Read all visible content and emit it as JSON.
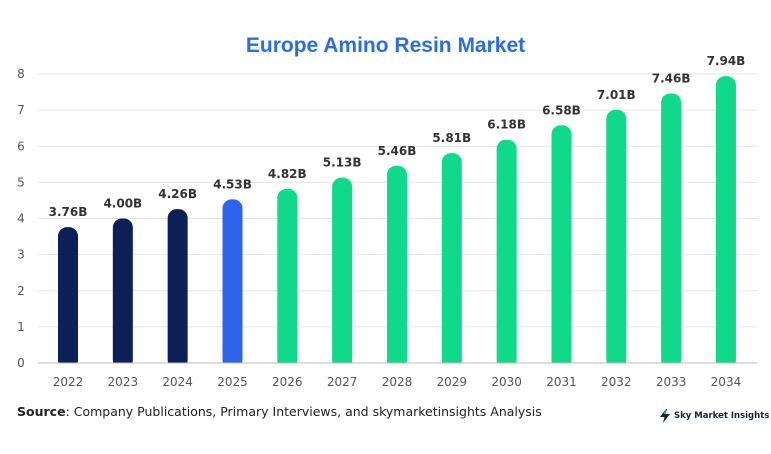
{
  "colors": {
    "title": "#2d6de0",
    "historical": "#0d1f57",
    "current": "#2e63eb",
    "forecast": "#10d98c",
    "axis_text": "#555555",
    "label_text": "#333333",
    "gridline": "#e6e6e6",
    "axis_line": "#bbbbbb"
  },
  "chart_data": {
    "type": "bar",
    "title": "Europe Amino Resin Market",
    "xlabel": "",
    "ylabel": "",
    "ylim": [
      0,
      8
    ],
    "yticks": [
      0,
      1,
      2,
      3,
      4,
      5,
      6,
      7,
      8
    ],
    "grid": true,
    "categories": [
      "2022",
      "2023",
      "2024",
      "2025",
      "2026",
      "2027",
      "2028",
      "2029",
      "2030",
      "2031",
      "2032",
      "2033",
      "2034"
    ],
    "values": [
      3.76,
      4.0,
      4.26,
      4.53,
      4.82,
      5.13,
      5.46,
      5.81,
      6.18,
      6.58,
      7.01,
      7.46,
      7.94
    ],
    "data_labels": [
      "3.76B",
      "4.00B",
      "4.26B",
      "4.53B",
      "4.82B",
      "5.13B",
      "5.46B",
      "5.81B",
      "6.18B",
      "6.58B",
      "7.01B",
      "7.46B",
      "7.94B"
    ],
    "bar_groups": [
      "historical",
      "historical",
      "historical",
      "current",
      "forecast",
      "forecast",
      "forecast",
      "forecast",
      "forecast",
      "forecast",
      "forecast",
      "forecast",
      "forecast"
    ]
  },
  "footer": {
    "source_label": "Source",
    "source_text": ": Company Publications, Primary Interviews, and skymarketinsights Analysis",
    "brand_name": "Sky Market Insights",
    "brand_icon": "lightning-bolt-icon"
  }
}
